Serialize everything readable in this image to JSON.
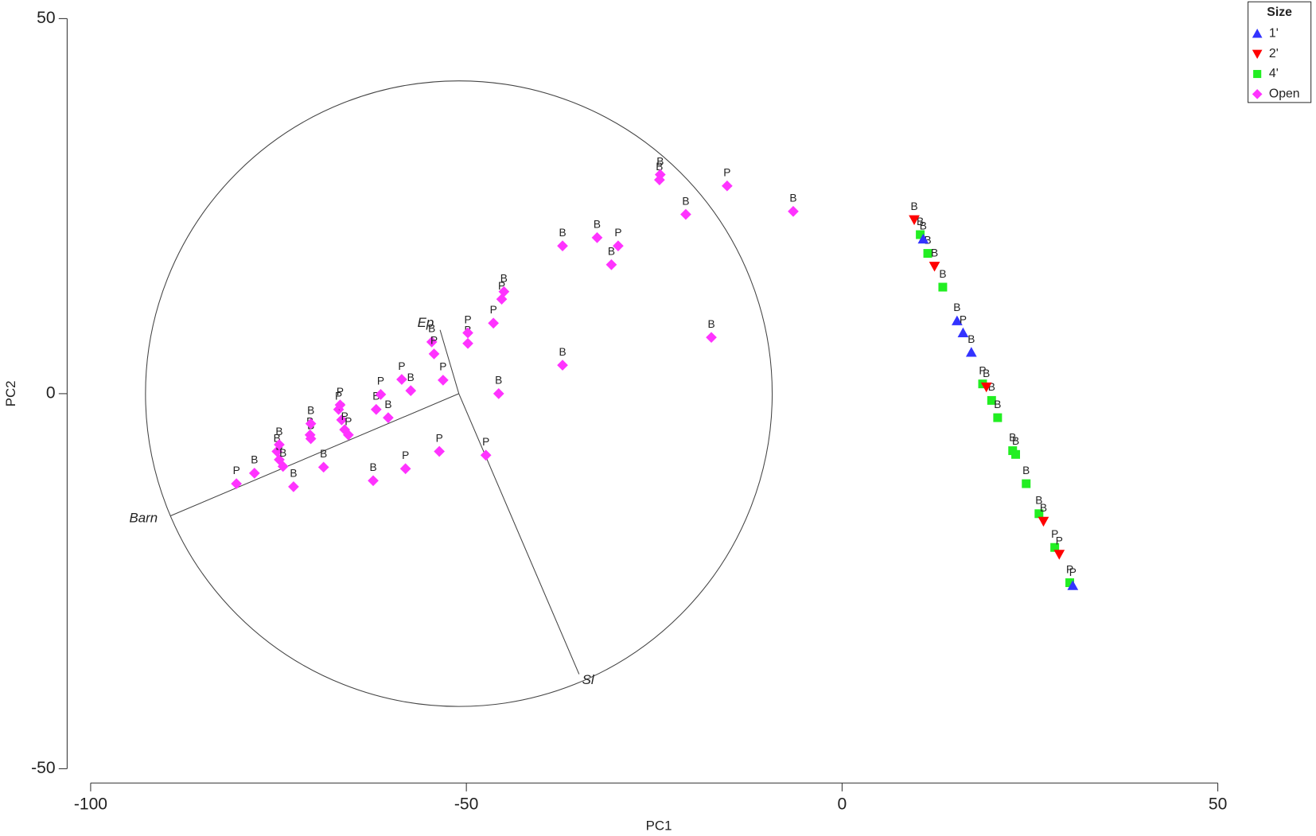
{
  "chart_data": {
    "type": "scatter",
    "x_label": "PC1",
    "y_label": "PC2",
    "xlim": [
      -100,
      50
    ],
    "ylim": [
      -50,
      50
    ],
    "xticks": [
      -100,
      -50,
      0,
      50
    ],
    "yticks": [
      -50,
      0,
      50
    ],
    "grid": false,
    "legend": {
      "title": "Size",
      "position": "top-right"
    },
    "series": [
      {
        "name": "1'",
        "color": "#3333ff",
        "marker": "triangle-up",
        "x": [
          10.8,
          15.3,
          16.1,
          17.2,
          30.7
        ],
        "values": [
          20.6,
          9.7,
          8.1,
          5.5,
          -25.6
        ],
        "labels": [
          "B",
          "B",
          "P",
          "B",
          "P"
        ]
      },
      {
        "name": "2'",
        "color": "#ff0000",
        "marker": "triangle-down",
        "x": [
          9.6,
          12.3,
          19.2,
          26.8,
          28.9
        ],
        "values": [
          23.2,
          17.0,
          0.9,
          -17.0,
          -21.4
        ],
        "labels": [
          "B",
          "B",
          "B",
          "B",
          "P"
        ]
      },
      {
        "name": "4'",
        "color": "#22ee22",
        "marker": "square",
        "x": [
          10.4,
          11.4,
          13.4,
          18.7,
          19.9,
          20.7,
          22.7,
          23.1,
          24.5,
          26.2,
          28.3,
          30.3
        ],
        "values": [
          21.2,
          18.7,
          14.2,
          1.3,
          -0.9,
          -3.2,
          -7.6,
          -8.1,
          -12.0,
          -16.0,
          -20.5,
          -25.2
        ],
        "labels": [
          "B",
          "B",
          "B",
          "P",
          "B",
          "B",
          "B",
          "B",
          "B",
          "B",
          "P",
          "P"
        ]
      },
      {
        "name": "Open",
        "color": "#ff33ff",
        "marker": "diamond",
        "x": [
          -80.6,
          -78.2,
          -75.2,
          -74.9,
          -74.4,
          -73.0,
          -70.8,
          -70.7,
          -69.0,
          -67.0,
          -66.6,
          -65.7,
          -62.4,
          -62.0,
          -61.4,
          -60.4,
          -58.6,
          -58.1,
          -57.4,
          -54.6,
          -54.3,
          -53.6,
          -53.1,
          -49.8,
          -49.8,
          -47.4,
          -46.4,
          -45.7,
          -45.3,
          -45.0,
          -37.2,
          -37.2,
          -32.6,
          -30.7,
          -29.8,
          -24.3,
          -24.2,
          -20.8,
          -17.4,
          -15.3,
          -6.5,
          -74.9,
          -70.7,
          -66.8,
          -66.2
        ],
        "values": [
          -12.0,
          -10.6,
          -7.7,
          -8.8,
          -9.7,
          -12.4,
          -5.5,
          -6.0,
          -9.8,
          -2.1,
          -3.5,
          -5.5,
          -11.6,
          -2.1,
          -0.1,
          -3.2,
          1.9,
          -10.0,
          0.4,
          6.9,
          5.3,
          -7.7,
          1.8,
          6.7,
          8.1,
          -8.2,
          9.4,
          0.0,
          12.6,
          13.6,
          19.7,
          3.8,
          20.8,
          17.2,
          19.7,
          28.5,
          29.2,
          23.9,
          7.5,
          27.7,
          24.3,
          -6.8,
          -4.0,
          -1.5,
          -4.8
        ],
        "labels": [
          "P",
          "B",
          "B",
          "B",
          "B",
          "B",
          "B",
          "B",
          "B",
          "P",
          "P",
          "P",
          "B",
          "B",
          "P",
          "B",
          "P",
          "P",
          "B",
          "B",
          "P",
          "P",
          "P",
          "B",
          "P",
          "P",
          "P",
          "B",
          "P",
          "B",
          "B",
          "B",
          "B",
          "B",
          "P",
          "B",
          "B",
          "B",
          "B",
          "P",
          "B",
          "B",
          "B",
          "P",
          "P"
        ]
      }
    ],
    "circle_center": [
      -51,
      0
    ],
    "circle_radius": 41.7,
    "vectors": [
      {
        "name": "Barn",
        "x": -89.4,
        "y": -16.3
      },
      {
        "name": "Sl",
        "x": -35.0,
        "y": -37.4
      },
      {
        "name": "Ep",
        "x": -53.5,
        "y": 8.5
      }
    ]
  }
}
